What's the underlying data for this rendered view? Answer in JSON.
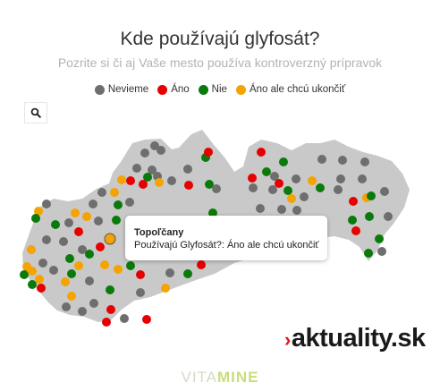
{
  "header": {
    "title": "Kde používajú glyfosát?",
    "subtitle": "Pozrite si či aj Vaše mesto používa kontroverzný prípravok"
  },
  "legend": {
    "items": [
      {
        "label": "Nevieme",
        "color": "#6e6e6e"
      },
      {
        "label": "Áno",
        "color": "#e60000"
      },
      {
        "label": "Nie",
        "color": "#0a7a0a"
      },
      {
        "label": "Áno ale chcú ukončiť",
        "color": "#f5a300"
      }
    ]
  },
  "search": {
    "icon": "search-icon"
  },
  "map": {
    "region_color": "#c9c9c9",
    "selected_town": "Topoľčany"
  },
  "tooltip": {
    "title": "Topoľčany",
    "text": "Používajú Glyfosát?: Áno ale chcú ukončiť"
  },
  "brand": {
    "chevron": "›",
    "name": "aktuality.sk"
  },
  "watermark": {
    "part1": "VITA",
    "part2": "MINE"
  }
}
